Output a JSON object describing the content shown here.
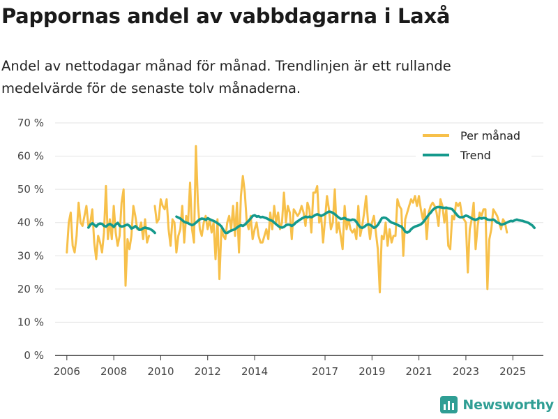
{
  "title": "Pappornas andel av vabbdagarna i Laxå",
  "subtitle": "Andel av nettodagar månad för månad. Trendlinjen är ett rullande medelvärde för de senaste tolv månaderna.",
  "brand": {
    "name": "Newsworthy",
    "icon": "newsworthy-logo-icon",
    "color": "#2f9e94"
  },
  "chart_data": {
    "type": "line",
    "title": "Pappornas andel av vabbdagarna i Laxå",
    "xlabel": "",
    "ylabel": "",
    "xlim": [
      2005.5,
      2026.3
    ],
    "ylim": [
      0,
      70
    ],
    "yticks": [
      0,
      10,
      20,
      30,
      40,
      50,
      60,
      70
    ],
    "ytick_labels": [
      "0 %",
      "10 %",
      "20 %",
      "30 %",
      "40 %",
      "50 %",
      "60 %",
      "70 %"
    ],
    "xticks": [
      2006,
      2008,
      2010,
      2012,
      2014,
      2017,
      2019,
      2021,
      2023,
      2025
    ],
    "xtick_labels": [
      "2006",
      "2008",
      "2010",
      "2012",
      "2014",
      "2017",
      "2019",
      "2021",
      "2023",
      "2025"
    ],
    "grid": true,
    "legend_position": "top-right",
    "series": [
      {
        "name": "Per månad",
        "color": "#f7c04a",
        "segments": [
          {
            "start": 2006.0,
            "step": 0.08333,
            "values": [
              31,
              40,
              43,
              33,
              31,
              36,
              46,
              40,
              39,
              42,
              45,
              39,
              40,
              44,
              34,
              29,
              36,
              34,
              31,
              37,
              51,
              35,
              41,
              35,
              45,
              37,
              33,
              36,
              46,
              50,
              21,
              35,
              32,
              36,
              45,
              42,
              38,
              38,
              40,
              35,
              41,
              34,
              36
            ]
          },
          {
            "start": 2009.75,
            "step": 0.08333,
            "values": [
              45,
              40,
              41,
              47,
              45,
              44,
              47,
              38,
              33,
              41,
              40,
              31,
              36,
              38,
              45,
              34,
              42,
              40,
              52,
              38,
              34,
              63,
              46,
              38,
              36,
              40,
              42,
              38,
              41,
              37,
              40,
              29,
              41,
              23,
              38,
              36,
              35,
              40,
              42,
              38,
              45,
              36,
              46,
              31,
              48,
              54,
              49,
              40,
              38,
              42,
              35,
              38,
              40,
              36,
              34,
              34,
              36,
              38,
              35,
              43,
              38,
              45,
              40,
              43,
              38,
              40,
              49,
              40,
              45,
              43,
              35,
              44,
              43,
              42,
              43,
              45,
              43,
              39,
              46,
              44,
              37,
              49,
              49,
              51,
              40,
              42,
              34,
              41,
              48,
              44,
              38,
              40,
              50,
              37,
              40,
              36,
              32,
              45,
              38,
              41,
              38,
              37,
              38,
              35,
              45,
              36,
              39,
              43,
              48,
              40,
              35,
              40,
              42,
              37,
              32,
              19,
              36,
              35,
              40,
              33,
              38,
              34,
              36,
              36,
              47,
              45,
              44,
              30,
              41,
              43,
              45,
              47,
              46,
              48,
              45,
              48,
              44,
              41,
              44,
              35,
              43,
              45,
              46,
              45,
              43,
              39,
              47,
              45,
              40,
              44,
              33,
              32,
              42,
              41,
              46,
              45,
              46,
              42,
              41,
              40,
              25,
              38,
              41,
              46,
              32,
              39,
              43,
              42,
              44,
              44,
              20,
              35,
              38,
              44,
              43,
              42,
              40,
              38,
              41,
              40,
              37
            ]
          }
        ]
      },
      {
        "name": "Trend",
        "color": "#14998c",
        "segments": [
          {
            "start": 2006.92,
            "step": 0.08333,
            "values": [
              38.5,
              39.4,
              39.8,
              39.3,
              38.8,
              39.5,
              39.7,
              39.6,
              39.0,
              38.8,
              39.3,
              39.6,
              39.2,
              38.7,
              39.5,
              39.9,
              39.0,
              38.8,
              38.9,
              39.2,
              39.4,
              39.0,
              38.2,
              38.5,
              38.9,
              38.4,
              37.8,
              37.9,
              38.3,
              38.5,
              38.3,
              38.2,
              37.9,
              37.5,
              36.9
            ]
          },
          {
            "start": 2010.67,
            "step": 0.08333,
            "values": [
              41.8,
              41.5,
              41.2,
              40.7,
              40.2,
              40.0,
              39.8,
              39.5,
              39.2,
              39.5,
              40.0,
              40.5,
              41.0,
              41.2,
              41.1,
              40.8,
              41.3,
              41.0,
              40.7,
              40.5,
              40.2,
              39.8,
              39.4,
              38.8,
              37.8,
              36.9,
              36.9,
              37.3,
              37.6,
              37.8,
              38.0,
              38.5,
              38.9,
              39.2,
              39.0,
              39.4,
              40.0,
              40.6,
              41.3,
              42.0,
              42.2,
              41.8,
              41.9,
              41.6,
              41.7,
              41.5,
              41.3,
              41.0,
              40.7,
              40.5,
              40.0,
              39.5,
              39.0,
              38.6,
              38.5,
              38.7,
              39.2,
              39.4,
              39.3,
              39.0,
              39.4,
              40.0,
              40.4,
              40.8,
              41.2,
              41.5,
              41.8,
              41.6,
              41.8,
              41.6,
              41.9,
              42.3,
              42.5,
              42.3,
              42.0,
              42.3,
              42.6,
              43.0,
              43.3,
              43.2,
              42.9,
              42.5,
              42.0,
              41.5,
              41.1,
              41.2,
              41.4,
              41.0,
              40.8,
              40.7,
              40.9,
              40.8,
              40.2,
              39.3,
              38.6,
              38.4,
              38.7,
              39.2,
              39.5,
              39.3,
              38.9,
              38.4,
              38.7,
              39.3,
              40.3,
              41.3,
              41.5,
              41.4,
              41.0,
              40.4,
              40.0,
              39.8,
              39.6,
              39.3,
              39.0,
              38.8,
              38.1,
              37.2,
              37.0,
              37.3,
              38.0,
              38.5,
              38.8,
              39.0,
              39.2,
              39.5,
              40.0,
              40.8,
              41.6,
              42.4,
              43.0,
              43.8,
              44.3,
              44.6,
              44.7,
              44.6,
              44.5,
              44.4,
              44.5,
              44.3,
              44.2,
              44.0,
              43.3,
              42.6,
              41.9,
              41.6,
              41.6,
              41.8,
              42.1,
              41.9,
              41.6,
              41.2,
              41.0,
              40.8,
              41.1,
              41.4,
              41.2,
              41.4,
              41.3,
              40.9,
              40.8,
              40.8,
              40.9,
              40.5,
              40.0,
              39.8,
              39.4,
              39.5,
              39.7,
              40.0,
              40.3,
              40.5,
              40.4,
              40.7,
              40.9,
              40.7,
              40.6,
              40.5,
              40.3,
              40.1,
              39.9,
              39.5,
              39.1,
              38.4
            ]
          }
        ]
      }
    ]
  }
}
